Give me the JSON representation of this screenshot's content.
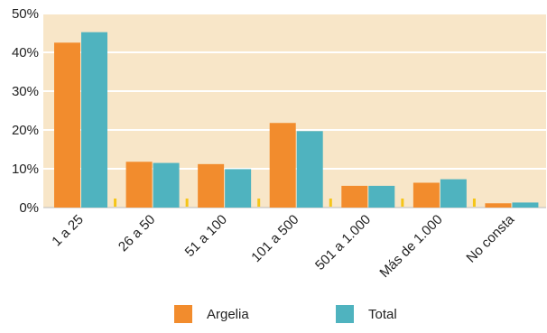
{
  "chart_data": {
    "type": "bar",
    "title": "",
    "xlabel": "",
    "ylabel": "",
    "categories": [
      "1 a 25",
      "26 a 50",
      "51 a 100",
      "101 a 500",
      "501 a 1.000",
      "Más de 1.000",
      "No consta"
    ],
    "series": [
      {
        "name": "Argelia",
        "color": "#F28C2D",
        "values": [
          42.5,
          11.8,
          11.2,
          21.8,
          5.6,
          6.4,
          1.1
        ]
      },
      {
        "name": "Total",
        "color": "#4FB3BF",
        "values": [
          45.2,
          11.5,
          9.9,
          19.7,
          5.6,
          7.3,
          1.3
        ]
      }
    ],
    "ylim": [
      0,
      50
    ],
    "yticks": [
      0,
      10,
      20,
      30,
      40,
      50
    ],
    "ytick_labels": [
      "0%",
      "10%",
      "20%",
      "30%",
      "40%",
      "50%"
    ],
    "grid": true,
    "legend_position": "bottom",
    "colors": {
      "plot_background": "#F8E6C8",
      "gridline": "#FFFFFF",
      "axis": "#BBBBBB",
      "separator_marker": "#F5C518"
    }
  }
}
